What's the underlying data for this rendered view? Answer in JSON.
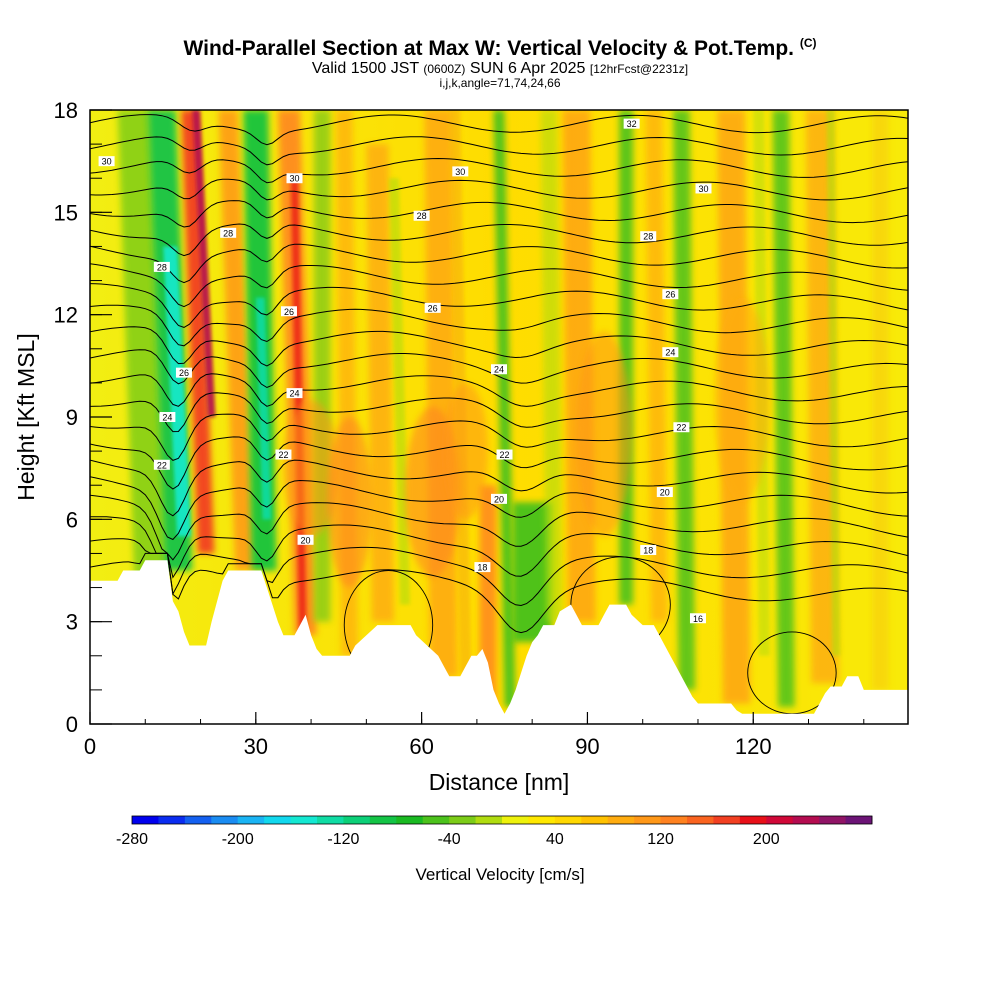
{
  "header": {
    "title": "Wind-Parallel Section at Max W: Vertical Velocity & Pot.Temp.",
    "copyright": "(C)",
    "valid_main": "Valid 1500 JST",
    "valid_utc": "(0600Z)",
    "valid_date": "SUN 6 Apr 2025",
    "forecast": "[12hrFcst@2231z]",
    "grid_info": "i,j,k,angle=71,74,24,66"
  },
  "chart_data": {
    "type": "heatmap",
    "title": "Wind-Parallel Section at Max W: Vertical Velocity & Pot.Temp.",
    "xlabel": "Distance [nm]",
    "ylabel": "Height [Kft MSL]",
    "xlim": [
      0,
      148
    ],
    "ylim": [
      0,
      18
    ],
    "x_ticks": [
      0,
      30,
      60,
      90,
      120
    ],
    "y_ticks": [
      0,
      3,
      6,
      9,
      12,
      15,
      18
    ],
    "colorbar": {
      "label": "Vertical Velocity [cm/s]",
      "tick_labels": [
        -280,
        -200,
        -120,
        -40,
        40,
        120,
        200
      ],
      "levels": [
        -280,
        -260,
        -240,
        -220,
        -200,
        -180,
        -160,
        -140,
        -120,
        -100,
        -80,
        -60,
        -40,
        -20,
        0,
        20,
        40,
        60,
        80,
        100,
        120,
        140,
        160,
        180,
        200,
        220,
        240,
        260,
        280
      ],
      "colors": [
        "#0000ee",
        "#0a2cf0",
        "#1460f0",
        "#1a8cf2",
        "#1ab4f4",
        "#12d8ee",
        "#14e8d2",
        "#10dca4",
        "#0cd078",
        "#14c446",
        "#1aba22",
        "#4cc21c",
        "#7ccc18",
        "#b0dc10",
        "#eef20c",
        "#ffe800",
        "#ffd800",
        "#ffc200",
        "#ffac10",
        "#ff9818",
        "#ff8220",
        "#fa6420",
        "#f24022",
        "#e81018",
        "#d00838",
        "#b40c50",
        "#901466",
        "#6c1476"
      ]
    },
    "theta_contour_levels": [
      16,
      18,
      20,
      22,
      24,
      26,
      28,
      30,
      32
    ],
    "theta_labels": [
      {
        "x": 3,
        "y": 16.5,
        "text": "30"
      },
      {
        "x": 25,
        "y": 14.4,
        "text": "28"
      },
      {
        "x": 37,
        "y": 16.0,
        "text": "30"
      },
      {
        "x": 13,
        "y": 13.4,
        "text": "28"
      },
      {
        "x": 36,
        "y": 12.1,
        "text": "26"
      },
      {
        "x": 17,
        "y": 10.3,
        "text": "26"
      },
      {
        "x": 37,
        "y": 9.7,
        "text": "24"
      },
      {
        "x": 14,
        "y": 9.0,
        "text": "24"
      },
      {
        "x": 35,
        "y": 7.9,
        "text": "22"
      },
      {
        "x": 13,
        "y": 7.6,
        "text": "22"
      },
      {
        "x": 39,
        "y": 5.4,
        "text": "20"
      },
      {
        "x": 60,
        "y": 14.9,
        "text": "28"
      },
      {
        "x": 67,
        "y": 16.2,
        "text": "30"
      },
      {
        "x": 62,
        "y": 12.2,
        "text": "26"
      },
      {
        "x": 74,
        "y": 10.4,
        "text": "24"
      },
      {
        "x": 75,
        "y": 7.9,
        "text": "22"
      },
      {
        "x": 74,
        "y": 6.6,
        "text": "20"
      },
      {
        "x": 71,
        "y": 4.6,
        "text": "18"
      },
      {
        "x": 98,
        "y": 17.6,
        "text": "32"
      },
      {
        "x": 111,
        "y": 15.7,
        "text": "30"
      },
      {
        "x": 101,
        "y": 14.3,
        "text": "28"
      },
      {
        "x": 105,
        "y": 12.6,
        "text": "26"
      },
      {
        "x": 105,
        "y": 10.9,
        "text": "24"
      },
      {
        "x": 107,
        "y": 8.7,
        "text": "22"
      },
      {
        "x": 104,
        "y": 6.8,
        "text": "20"
      },
      {
        "x": 101,
        "y": 5.1,
        "text": "18"
      },
      {
        "x": 110,
        "y": 3.1,
        "text": "16"
      }
    ],
    "terrain_kft": [
      [
        0,
        4.2
      ],
      [
        5,
        4.2
      ],
      [
        6,
        4.5
      ],
      [
        9,
        4.5
      ],
      [
        10,
        4.8
      ],
      [
        14,
        4.8
      ],
      [
        14.5,
        4.2
      ],
      [
        15,
        3.6
      ],
      [
        16,
        3.3
      ],
      [
        17,
        2.7
      ],
      [
        18,
        2.3
      ],
      [
        21,
        2.3
      ],
      [
        22,
        3.0
      ],
      [
        23,
        3.6
      ],
      [
        24,
        4.2
      ],
      [
        25,
        4.5
      ],
      [
        31,
        4.5
      ],
      [
        32,
        4.0
      ],
      [
        33,
        3.5
      ],
      [
        34,
        3.0
      ],
      [
        35,
        2.6
      ],
      [
        37,
        2.6
      ],
      [
        38,
        2.9
      ],
      [
        39,
        3.2
      ],
      [
        40,
        2.6
      ],
      [
        41,
        2.2
      ],
      [
        42,
        2.0
      ],
      [
        47,
        2.0
      ],
      [
        48,
        2.3
      ],
      [
        50,
        2.6
      ],
      [
        52,
        2.9
      ],
      [
        58,
        2.9
      ],
      [
        59,
        2.6
      ],
      [
        61,
        2.3
      ],
      [
        63,
        2.0
      ],
      [
        64,
        1.7
      ],
      [
        65,
        1.4
      ],
      [
        67,
        1.4
      ],
      [
        68,
        1.7
      ],
      [
        69,
        2.0
      ],
      [
        70,
        2.0
      ],
      [
        71,
        2.2
      ],
      [
        72,
        1.8
      ],
      [
        73,
        1.0
      ],
      [
        74,
        0.6
      ],
      [
        75,
        0.3
      ],
      [
        76,
        0.6
      ],
      [
        77,
        1.0
      ],
      [
        78,
        1.5
      ],
      [
        79,
        2.0
      ],
      [
        80,
        2.4
      ],
      [
        81,
        2.6
      ],
      [
        82,
        2.9
      ],
      [
        84,
        2.9
      ],
      [
        85,
        3.3
      ],
      [
        87,
        3.5
      ],
      [
        88,
        3.2
      ],
      [
        89,
        2.9
      ],
      [
        92,
        2.9
      ],
      [
        93,
        3.2
      ],
      [
        94,
        3.5
      ],
      [
        97,
        3.5
      ],
      [
        98,
        3.2
      ],
      [
        100,
        2.9
      ],
      [
        102,
        2.9
      ],
      [
        103,
        2.6
      ],
      [
        104,
        2.3
      ],
      [
        105,
        2.0
      ],
      [
        106,
        1.7
      ],
      [
        107,
        1.4
      ],
      [
        108,
        1.1
      ],
      [
        109,
        0.8
      ],
      [
        110,
        0.6
      ],
      [
        116,
        0.6
      ],
      [
        117,
        0.4
      ],
      [
        118,
        0.3
      ],
      [
        131,
        0.3
      ],
      [
        132,
        0.6
      ],
      [
        133,
        0.9
      ],
      [
        134,
        1.1
      ],
      [
        136,
        1.1
      ],
      [
        137,
        1.4
      ],
      [
        139,
        1.4
      ],
      [
        140,
        1.0
      ],
      [
        148,
        1.0
      ]
    ]
  }
}
